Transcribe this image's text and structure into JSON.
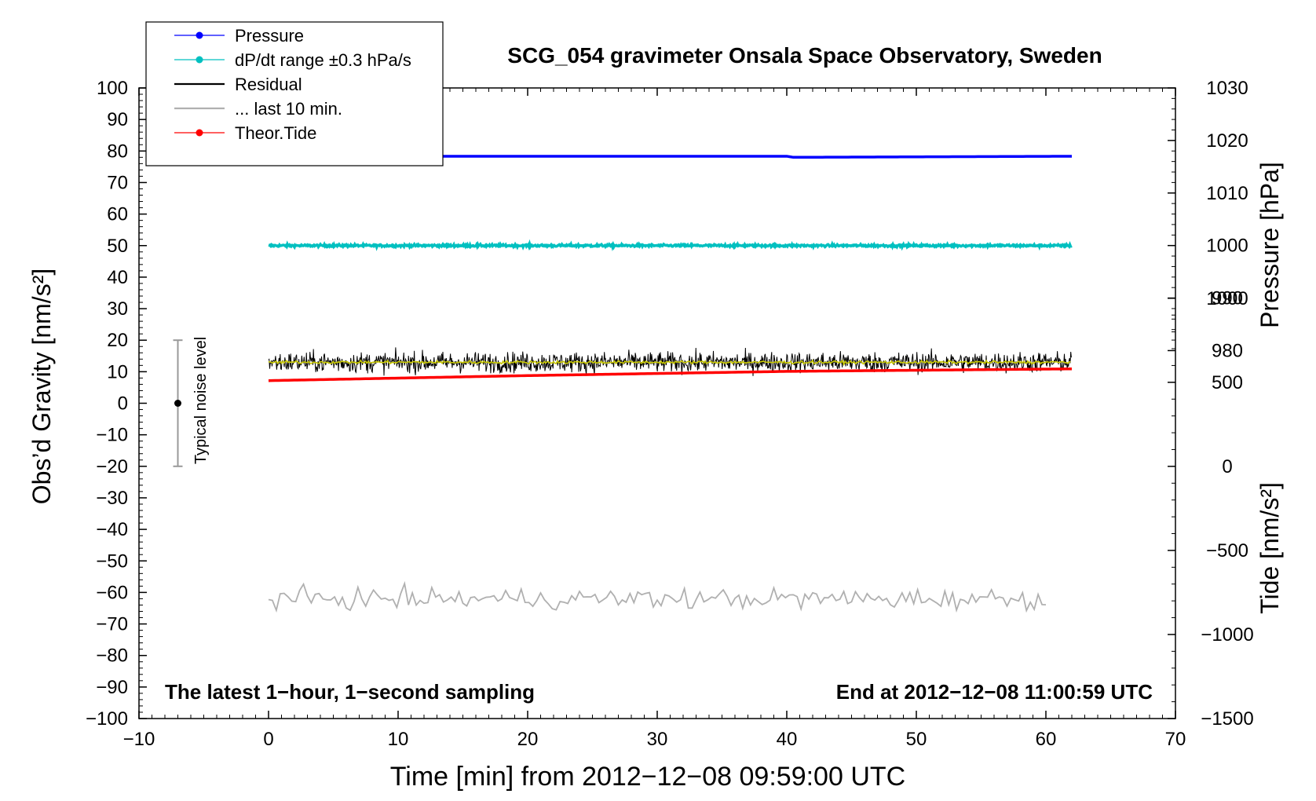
{
  "chart_data": {
    "type": "line",
    "title": "SCG_054 gravimeter Onsala Space Observatory, Sweden",
    "xlabel": "Time [min] from 2012−12−08 09:59:00 UTC",
    "ylabel_left": "Obs’d Gravity [nm/s²]",
    "ylabel_right_pressure": "Pressure [hPa]",
    "ylabel_right_tide": "Tide [nm/s²]",
    "xlim": [
      -10,
      70
    ],
    "ylim": [
      -100,
      100
    ],
    "x_ticks": [
      -10,
      0,
      10,
      20,
      30,
      40,
      50,
      60,
      70
    ],
    "x_tick_labels": [
      "−10",
      "0",
      "10",
      "20",
      "30",
      "40",
      "50",
      "60",
      "70"
    ],
    "y_ticks": [
      100,
      90,
      80,
      70,
      60,
      50,
      40,
      30,
      20,
      10,
      0,
      -10,
      -20,
      -30,
      -40,
      -50,
      -60,
      -70,
      -80,
      -90,
      -100
    ],
    "y_tick_labels": [
      "100",
      "90",
      "80",
      "70",
      "60",
      "50",
      "40",
      "30",
      "20",
      "10",
      "0",
      "−10",
      "−20",
      "−30",
      "−40",
      "−50",
      "−60",
      "−70",
      "−80",
      "−90",
      "−100"
    ],
    "pressure_axis": {
      "ticks": [
        1030,
        1020,
        1010,
        1000,
        990,
        980
      ],
      "tick_labels": [
        "1030",
        "1020",
        "1010",
        "1000",
        "990",
        "980"
      ],
      "range": [
        980,
        1030
      ],
      "gravity_range": [
        16.7,
        100
      ]
    },
    "tide_axis": {
      "ticks": [
        1000,
        500,
        0,
        -500,
        -1000,
        -1500
      ],
      "tick_labels": [
        "1000",
        "500",
        "0",
        "−500",
        "−1000",
        "−1500"
      ],
      "range": [
        -1500,
        1000
      ],
      "gravity_range": [
        -100,
        33.3
      ]
    },
    "legend": [
      {
        "label": "Pressure",
        "color": "#0000ff",
        "marker": true
      },
      {
        "label": "dP/dt range ±0.3 hPa/s",
        "color": "#00c0c0",
        "marker": true
      },
      {
        "label": "Residual",
        "color": "#000000",
        "marker": false
      },
      {
        "label": "... last 10 min.",
        "color": "#b0b0b0",
        "marker": false
      },
      {
        "label": "Theor.Tide",
        "color": "#ff0000",
        "marker": true
      }
    ],
    "legend_position": "top-left",
    "series": [
      {
        "name": "Pressure",
        "color": "#0000ff",
        "unit": "hPa",
        "x": [
          0,
          40,
          40.5,
          41.2,
          62
        ],
        "values": [
          1017,
          1017,
          1016.8,
          1016.8,
          1017
        ]
      },
      {
        "name": "dP/dt range ±0.3 hPa/s",
        "color": "#00c0c0",
        "unit": "nm/s² (plotted)",
        "x": [
          0,
          62
        ],
        "values": [
          50,
          50
        ]
      },
      {
        "name": "Residual",
        "color": "#000000",
        "unit": "nm/s²",
        "x": [
          0,
          62
        ],
        "values": [
          13,
          13
        ],
        "noise_range": [
          2,
          22
        ]
      },
      {
        "name": "Residual (smoothed)",
        "color": "#c8c800",
        "unit": "nm/s²",
        "x": [
          0,
          62
        ],
        "values": [
          13,
          13
        ]
      },
      {
        "name": "... last 10 min.",
        "color": "#b0b0b0",
        "unit": "nm/s² (plotted)",
        "x": [
          0,
          60
        ],
        "values": [
          -62,
          -62
        ],
        "noise_range": [
          -69,
          -54
        ]
      },
      {
        "name": "Theor.Tide",
        "color": "#ff0000",
        "unit": "nm/s²",
        "x": [
          0,
          20,
          40,
          62
        ],
        "values": [
          510,
          540,
          565,
          580
        ]
      }
    ],
    "annotations": {
      "noise_label": "Typical noise level",
      "noise_bar": {
        "x": -7,
        "y_center": 0,
        "y_low": -20,
        "y_high": 20
      },
      "bottom_left": "The latest 1−hour, 1−second sampling",
      "bottom_right": "End at 2012−12−08 11:00:59 UTC"
    }
  }
}
